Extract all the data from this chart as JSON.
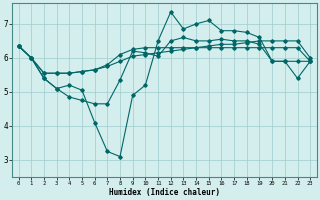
{
  "xlabel": "Humidex (Indice chaleur)",
  "background_color": "#d4eeee",
  "grid_color": "#a0cccc",
  "line_color": "#006666",
  "xlim": [
    -0.5,
    23.5
  ],
  "ylim": [
    2.5,
    7.6
  ],
  "yticks": [
    3,
    4,
    5,
    6,
    7
  ],
  "xticks": [
    0,
    1,
    2,
    3,
    4,
    5,
    6,
    7,
    8,
    9,
    10,
    11,
    12,
    13,
    14,
    15,
    16,
    17,
    18,
    19,
    20,
    21,
    22,
    23
  ],
  "series": [
    [
      6.35,
      6.0,
      5.55,
      5.55,
      5.55,
      5.6,
      5.65,
      5.75,
      5.9,
      6.05,
      6.1,
      6.15,
      6.2,
      6.25,
      6.3,
      6.35,
      6.4,
      6.4,
      6.45,
      6.5,
      6.5,
      6.5,
      6.5,
      6.0
    ],
    [
      6.35,
      6.0,
      5.4,
      5.1,
      4.85,
      4.75,
      4.65,
      4.65,
      5.35,
      6.2,
      6.15,
      6.05,
      6.5,
      6.6,
      6.5,
      6.5,
      6.55,
      6.5,
      6.5,
      6.4,
      5.9,
      5.9,
      5.4,
      5.9
    ],
    [
      6.35,
      6.0,
      5.4,
      5.1,
      5.2,
      5.05,
      4.1,
      3.25,
      3.1,
      4.9,
      5.2,
      6.5,
      7.35,
      6.85,
      7.0,
      7.1,
      6.8,
      6.8,
      6.75,
      6.6,
      5.9,
      5.9,
      5.9,
      5.9
    ],
    [
      6.35,
      6.0,
      5.55,
      5.55,
      5.55,
      5.6,
      5.65,
      5.8,
      6.1,
      6.25,
      6.3,
      6.3,
      6.3,
      6.3,
      6.3,
      6.3,
      6.3,
      6.3,
      6.3,
      6.3,
      6.3,
      6.3,
      6.3,
      5.9
    ]
  ],
  "marker": "D",
  "markersize": 1.8,
  "linewidth": 0.8
}
